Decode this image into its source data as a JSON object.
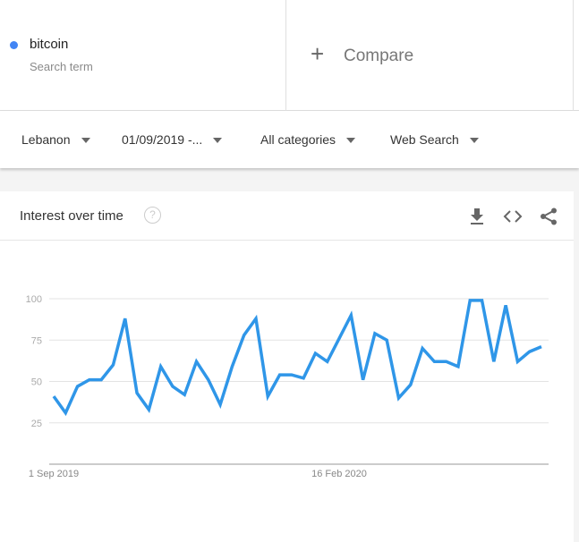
{
  "search_term": {
    "name": "bitcoin",
    "subtitle": "Search term",
    "color": "#4285f4"
  },
  "compare": {
    "label": "Compare",
    "icon": "plus-icon"
  },
  "filters": [
    {
      "label": "Lebanon"
    },
    {
      "label": "01/09/2019 -..."
    },
    {
      "label": "All categories"
    },
    {
      "label": "Web Search"
    }
  ],
  "card": {
    "title": "Interest over time",
    "help_icon": "?",
    "actions": [
      "download-icon",
      "embed-code-icon",
      "share-icon"
    ]
  },
  "chart_data": {
    "type": "line",
    "x_start": "1 Sep 2019",
    "x_interval": "weekly",
    "x_tick_labels": [
      "1 Sep 2019",
      "16 Feb 2020"
    ],
    "y_ticks": [
      25,
      50,
      75,
      100
    ],
    "ylim": [
      0,
      100
    ],
    "grid": true,
    "series": [
      {
        "color": "#2f96e8",
        "values": [
          41,
          31,
          47,
          51,
          51,
          60,
          88,
          43,
          33,
          59,
          47,
          42,
          62,
          51,
          36,
          59,
          78,
          88,
          41,
          54,
          54,
          52,
          67,
          62,
          76,
          90,
          51,
          79,
          75,
          40,
          48,
          70,
          62,
          62,
          59,
          99,
          99,
          62,
          96,
          62,
          68,
          71
        ]
      }
    ]
  }
}
